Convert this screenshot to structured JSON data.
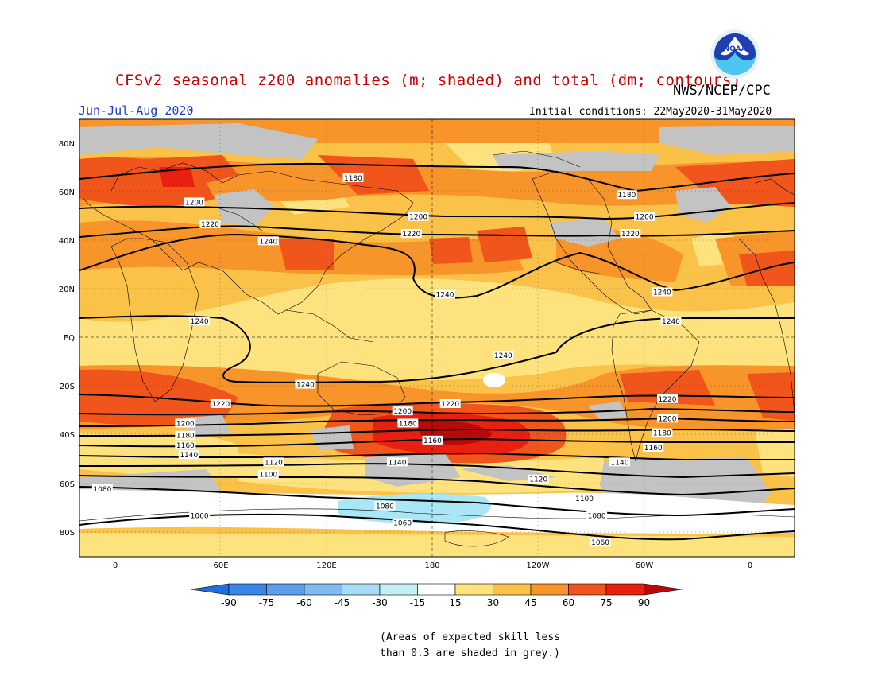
{
  "title": "CFSv2 seasonal z200 anomalies (m; shaded) and total (dm; contours)",
  "agency": "NWS/NCEP/CPC",
  "logo_text": "NOAA",
  "season": "Jun-Jul-Aug 2020",
  "initial_conditions": "Initial conditions: 22May2020-31May2020",
  "note_lines": [
    "(Areas of expected skill less",
    "than 0.3 are shaded in grey.)"
  ],
  "lat_labels": [
    "80N",
    "60N",
    "40N",
    "20N",
    "EQ",
    "20S",
    "40S",
    "60S",
    "80S"
  ],
  "lon_labels": [
    "0",
    "60E",
    "120E",
    "180",
    "120W",
    "60W",
    "0"
  ],
  "contour_labels": [
    {
      "text": "1180",
      "lat": 66,
      "lon": 135
    },
    {
      "text": "1180",
      "lat": 59,
      "lon": 290
    },
    {
      "text": "1200",
      "lat": 56,
      "lon": 45
    },
    {
      "text": "1200",
      "lat": 50,
      "lon": 172
    },
    {
      "text": "1200",
      "lat": 50,
      "lon": 300
    },
    {
      "text": "1220",
      "lat": 47,
      "lon": 54
    },
    {
      "text": "1220",
      "lat": 43,
      "lon": 168
    },
    {
      "text": "1220",
      "lat": 43,
      "lon": 292
    },
    {
      "text": "1240",
      "lat": 40,
      "lon": 87
    },
    {
      "text": "1240",
      "lat": 18,
      "lon": 187
    },
    {
      "text": "1240",
      "lat": 19,
      "lon": 310
    },
    {
      "text": "1240",
      "lat": 7,
      "lon": 48
    },
    {
      "text": "1240",
      "lat": 7,
      "lon": 315
    },
    {
      "text": "1240",
      "lat": -7,
      "lon": 220
    },
    {
      "text": "1240",
      "lat": -19,
      "lon": 108
    },
    {
      "text": "1220",
      "lat": -27,
      "lon": 60
    },
    {
      "text": "1220",
      "lat": -27,
      "lon": 190
    },
    {
      "text": "1220",
      "lat": -25,
      "lon": 313
    },
    {
      "text": "1200",
      "lat": -30,
      "lon": 163
    },
    {
      "text": "1200",
      "lat": -35,
      "lon": 40
    },
    {
      "text": "1200",
      "lat": -33,
      "lon": 313
    },
    {
      "text": "1180",
      "lat": -35,
      "lon": 166
    },
    {
      "text": "1180",
      "lat": -40,
      "lon": 40
    },
    {
      "text": "1180",
      "lat": -39,
      "lon": 310
    },
    {
      "text": "1160",
      "lat": -42,
      "lon": 180
    },
    {
      "text": "1160",
      "lat": -44,
      "lon": 40
    },
    {
      "text": "1160",
      "lat": -45,
      "lon": 305
    },
    {
      "text": "1140",
      "lat": -48,
      "lon": 42
    },
    {
      "text": "1140",
      "lat": -51,
      "lon": 160
    },
    {
      "text": "1140",
      "lat": -51,
      "lon": 286
    },
    {
      "text": "1120",
      "lat": -51,
      "lon": 90
    },
    {
      "text": "1120",
      "lat": -58,
      "lon": 240
    },
    {
      "text": "1100",
      "lat": -56,
      "lon": 87
    },
    {
      "text": "1100",
      "lat": -66,
      "lon": 266
    },
    {
      "text": "1080",
      "lat": -62,
      "lon": -7
    },
    {
      "text": "1080",
      "lat": -69,
      "lon": 153
    },
    {
      "text": "1080",
      "lat": -73,
      "lon": 273
    },
    {
      "text": "1060",
      "lat": -73,
      "lon": 48
    },
    {
      "text": "1060",
      "lat": -76,
      "lon": 163
    },
    {
      "text": "1060",
      "lat": -84,
      "lon": 275
    }
  ],
  "colorbar": {
    "ticks": [
      "-90",
      "-75",
      "-60",
      "-45",
      "-30",
      "-15",
      "15",
      "30",
      "45",
      "60",
      "75",
      "90"
    ],
    "colors": [
      "#1e6ee0",
      "#3a86e6",
      "#5a9eec",
      "#7fbaf0",
      "#a8dcf4",
      "#c4f0f2",
      "#ffffff",
      "#fde27e",
      "#fbc24a",
      "#f8952a",
      "#f0561c",
      "#e82010",
      "#b80a08"
    ]
  },
  "palette": {
    "grey": "#c3c3c3",
    "pale_blue": "#a9e6f6"
  }
}
